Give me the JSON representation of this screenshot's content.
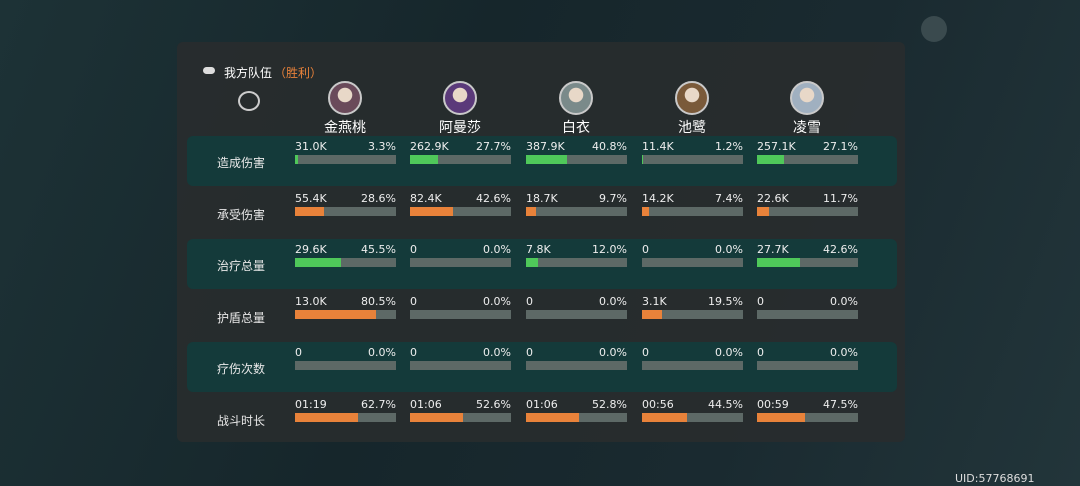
{
  "header": {
    "title": "我方队伍",
    "result": "（胜利）"
  },
  "characters": [
    {
      "name": "金燕桃"
    },
    {
      "name": "阿曼莎"
    },
    {
      "name": "白衣"
    },
    {
      "name": "池鹭"
    },
    {
      "name": "凌雪"
    }
  ],
  "rows": [
    {
      "label": "造成伤害",
      "highlight": true,
      "bar_color": "#4fc85a",
      "cells": [
        {
          "value": "31.0K",
          "percent": 3.3,
          "percent_label": "3.3%"
        },
        {
          "value": "262.9K",
          "percent": 27.7,
          "percent_label": "27.7%"
        },
        {
          "value": "387.9K",
          "percent": 40.8,
          "percent_label": "40.8%"
        },
        {
          "value": "11.4K",
          "percent": 1.2,
          "percent_label": "1.2%"
        },
        {
          "value": "257.1K",
          "percent": 27.1,
          "percent_label": "27.1%"
        }
      ]
    },
    {
      "label": "承受伤害",
      "highlight": false,
      "bar_color": "#e8823a",
      "cells": [
        {
          "value": "55.4K",
          "percent": 28.6,
          "percent_label": "28.6%"
        },
        {
          "value": "82.4K",
          "percent": 42.6,
          "percent_label": "42.6%"
        },
        {
          "value": "18.7K",
          "percent": 9.7,
          "percent_label": "9.7%"
        },
        {
          "value": "14.2K",
          "percent": 7.4,
          "percent_label": "7.4%"
        },
        {
          "value": "22.6K",
          "percent": 11.7,
          "percent_label": "11.7%"
        }
      ]
    },
    {
      "label": "治疗总量",
      "highlight": true,
      "bar_color": "#4fc85a",
      "cells": [
        {
          "value": "29.6K",
          "percent": 45.5,
          "percent_label": "45.5%"
        },
        {
          "value": "0",
          "percent": 0,
          "percent_label": "0.0%"
        },
        {
          "value": "7.8K",
          "percent": 12,
          "percent_label": "12.0%"
        },
        {
          "value": "0",
          "percent": 0,
          "percent_label": "0.0%"
        },
        {
          "value": "27.7K",
          "percent": 42.6,
          "percent_label": "42.6%"
        }
      ]
    },
    {
      "label": "护盾总量",
      "highlight": false,
      "bar_color": "#e8823a",
      "cells": [
        {
          "value": "13.0K",
          "percent": 80.5,
          "percent_label": "80.5%"
        },
        {
          "value": "0",
          "percent": 0,
          "percent_label": "0.0%"
        },
        {
          "value": "0",
          "percent": 0,
          "percent_label": "0.0%"
        },
        {
          "value": "3.1K",
          "percent": 19.5,
          "percent_label": "19.5%"
        },
        {
          "value": "0",
          "percent": 0,
          "percent_label": "0.0%"
        }
      ]
    },
    {
      "label": "疗伤次数",
      "highlight": true,
      "bar_color": "#4fc85a",
      "cells": [
        {
          "value": "0",
          "percent": 0,
          "percent_label": "0.0%"
        },
        {
          "value": "0",
          "percent": 0,
          "percent_label": "0.0%"
        },
        {
          "value": "0",
          "percent": 0,
          "percent_label": "0.0%"
        },
        {
          "value": "0",
          "percent": 0,
          "percent_label": "0.0%"
        },
        {
          "value": "0",
          "percent": 0,
          "percent_label": "0.0%"
        }
      ]
    },
    {
      "label": "战斗时长",
      "highlight": false,
      "bar_color": "#e8823a",
      "cells": [
        {
          "value": "01:19",
          "percent": 62.7,
          "percent_label": "62.7%"
        },
        {
          "value": "01:06",
          "percent": 52.6,
          "percent_label": "52.6%"
        },
        {
          "value": "01:06",
          "percent": 52.8,
          "percent_label": "52.8%"
        },
        {
          "value": "00:56",
          "percent": 44.5,
          "percent_label": "44.5%"
        },
        {
          "value": "00:59",
          "percent": 47.5,
          "percent_label": "47.5%"
        }
      ]
    }
  ],
  "uid": "UID:57768691"
}
